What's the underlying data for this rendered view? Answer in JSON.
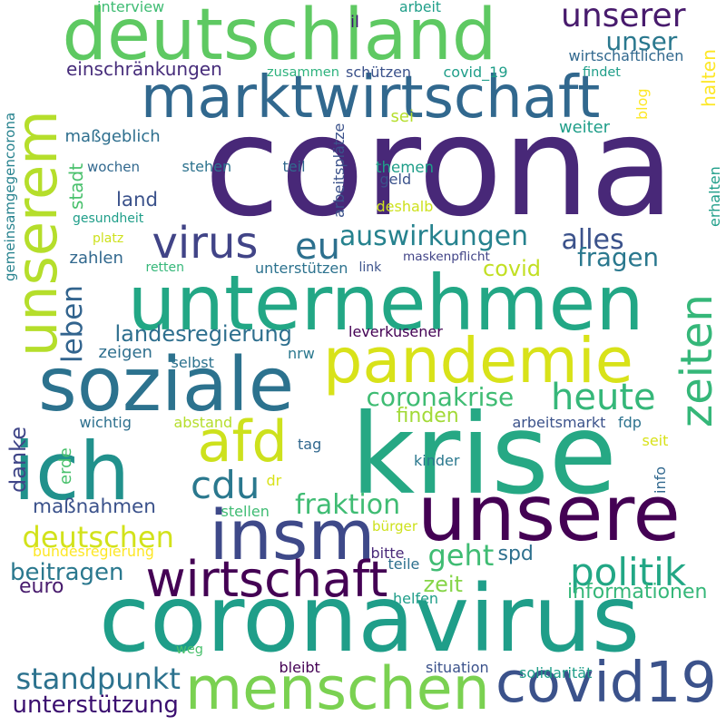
{
  "words": [
    {
      "text": "corona",
      "color": "#482878",
      "rotated": false
    },
    {
      "text": "coronavirus",
      "color": "#1f9e89",
      "rotated": false
    },
    {
      "text": "krise",
      "color": "#26a884",
      "rotated": false
    },
    {
      "text": "unternehmen",
      "color": "#22a785",
      "rotated": false
    },
    {
      "text": "deutschland",
      "color": "#5ec962",
      "rotated": false
    },
    {
      "text": "marktwirtschaft",
      "color": "#31688e",
      "rotated": false
    },
    {
      "text": "soziale",
      "color": "#2c728e",
      "rotated": false
    },
    {
      "text": "ich",
      "color": "#21918c",
      "rotated": false
    },
    {
      "text": "unsere",
      "color": "#440154",
      "rotated": false
    },
    {
      "text": "unserem",
      "color": "#b5de2b",
      "rotated": true
    },
    {
      "text": "zeiten",
      "color": "#35b779",
      "rotated": true
    },
    {
      "text": "pandemie",
      "color": "#d8e219",
      "rotated": false
    },
    {
      "text": "menschen",
      "color": "#7ad151",
      "rotated": false
    },
    {
      "text": "covid19",
      "color": "#3b528b",
      "rotated": false
    },
    {
      "text": "insm",
      "color": "#3e4989",
      "rotated": false
    },
    {
      "text": "afd",
      "color": "#cde11d",
      "rotated": false
    },
    {
      "text": "wirtschaft",
      "color": "#440154",
      "rotated": false
    },
    {
      "text": "virus",
      "color": "#414487",
      "rotated": false
    },
    {
      "text": "eu",
      "color": "#2d708e",
      "rotated": false
    },
    {
      "text": "politik",
      "color": "#22a785",
      "rotated": false
    },
    {
      "text": "unserer",
      "color": "#481b6d",
      "rotated": false
    },
    {
      "text": "cdu",
      "color": "#2a788e",
      "rotated": false
    },
    {
      "text": "heute",
      "color": "#35b779",
      "rotated": false
    },
    {
      "text": "land",
      "color": "#3b528b",
      "rotated": false
    },
    {
      "text": "unser",
      "color": "#2a788e",
      "rotated": false
    },
    {
      "text": "standpunkt",
      "color": "#2c728e",
      "rotated": false
    },
    {
      "text": "auswirkungen",
      "color": "#26828e",
      "rotated": false
    },
    {
      "text": "alles",
      "color": "#3b528b",
      "rotated": false
    },
    {
      "text": "fraktion",
      "color": "#3fbc73",
      "rotated": false
    },
    {
      "text": "deutschen",
      "color": "#d2e21b",
      "rotated": false
    },
    {
      "text": "coronakrise",
      "color": "#3fbc73",
      "rotated": false
    },
    {
      "text": "geht",
      "color": "#3fbc73",
      "rotated": false
    },
    {
      "text": "fragen",
      "color": "#2a788e",
      "rotated": false
    },
    {
      "text": "leben",
      "color": "#32648e",
      "rotated": true
    },
    {
      "text": "covid",
      "color": "#c2df23",
      "rotated": false
    },
    {
      "text": "landesregierung",
      "color": "#2e6f8e",
      "rotated": false
    },
    {
      "text": "unterstützung",
      "color": "#3b0f70",
      "rotated": false
    },
    {
      "text": "beitragen",
      "color": "#2a788e",
      "rotated": false
    },
    {
      "text": "danke",
      "color": "#404688",
      "rotated": true
    },
    {
      "text": "maßnahmen",
      "color": "#3b528b",
      "rotated": false
    },
    {
      "text": "finden",
      "color": "#a2da37",
      "rotated": false
    },
    {
      "text": "informationen",
      "color": "#35b779",
      "rotated": false
    },
    {
      "text": "zeit",
      "color": "#86d549",
      "rotated": false
    },
    {
      "text": "spd",
      "color": "#2d708e",
      "rotated": false
    },
    {
      "text": "euro",
      "color": "#481b6d",
      "rotated": false
    },
    {
      "text": "halten",
      "color": "#fde725",
      "rotated": true
    },
    {
      "text": "stadt",
      "color": "#4ac16d",
      "rotated": true
    },
    {
      "text": "einschränkungen",
      "color": "#472d7b",
      "rotated": false
    },
    {
      "text": "interview",
      "color": "#3fbc73",
      "rotated": false
    },
    {
      "text": "arbeit",
      "color": "#1f9e89",
      "rotated": false
    },
    {
      "text": "il",
      "color": "#3b0f70",
      "rotated": false
    },
    {
      "text": "wirtschaftlichen",
      "color": "#31688e",
      "rotated": false
    },
    {
      "text": "zusammen",
      "color": "#2db27d",
      "rotated": false
    },
    {
      "text": "schützen",
      "color": "#3b528b",
      "rotated": false
    },
    {
      "text": "covid_19",
      "color": "#1f9e89",
      "rotated": false
    },
    {
      "text": "findet",
      "color": "#1f9e89",
      "rotated": false
    },
    {
      "text": "blog",
      "color": "#fde725",
      "rotated": true
    },
    {
      "text": "sei",
      "color": "#b5de2b",
      "rotated": false
    },
    {
      "text": "weiter",
      "color": "#1f9e89",
      "rotated": false
    },
    {
      "text": "maßgeblich",
      "color": "#2e6f8e",
      "rotated": false
    },
    {
      "text": "arbeitsplätze",
      "color": "#3b528b",
      "rotated": true
    },
    {
      "text": "gemeinsamgegencorona",
      "color": "#26828e",
      "rotated": true
    },
    {
      "text": "wochen",
      "color": "#31688e",
      "rotated": false
    },
    {
      "text": "stehen",
      "color": "#2c728e",
      "rotated": false
    },
    {
      "text": "teil",
      "color": "#31688e",
      "rotated": false
    },
    {
      "text": "themen",
      "color": "#1f9e89",
      "rotated": false
    },
    {
      "text": "geld",
      "color": "#3b528b",
      "rotated": false
    },
    {
      "text": "erhalten",
      "color": "#1f9e89",
      "rotated": true
    },
    {
      "text": "gesundheit",
      "color": "#1f9e89",
      "rotated": false
    },
    {
      "text": "deshalb",
      "color": "#cde11d",
      "rotated": false
    },
    {
      "text": "platz",
      "color": "#cde11d",
      "rotated": false
    },
    {
      "text": "zahlen",
      "color": "#31688e",
      "rotated": false
    },
    {
      "text": "maskenpflicht",
      "color": "#414487",
      "rotated": false
    },
    {
      "text": "link",
      "color": "#3b528b",
      "rotated": false
    },
    {
      "text": "retten",
      "color": "#35b779",
      "rotated": false
    },
    {
      "text": "unterstützen",
      "color": "#2c728e",
      "rotated": false
    },
    {
      "text": "leverkusener",
      "color": "#440154",
      "rotated": false
    },
    {
      "text": "zeigen",
      "color": "#2e6f8e",
      "rotated": false
    },
    {
      "text": "selbst",
      "color": "#2c728e",
      "rotated": false
    },
    {
      "text": "nrw",
      "color": "#2a788e",
      "rotated": false
    },
    {
      "text": "wichtig",
      "color": "#2d708e",
      "rotated": false
    },
    {
      "text": "abstand",
      "color": "#b5de2b",
      "rotated": false
    },
    {
      "text": "arbeitsmarkt",
      "color": "#3b528b",
      "rotated": false
    },
    {
      "text": "fdp",
      "color": "#2c728e",
      "rotated": false
    },
    {
      "text": "seit",
      "color": "#d8e219",
      "rotated": false
    },
    {
      "text": "tag",
      "color": "#31688e",
      "rotated": false
    },
    {
      "text": "kinder",
      "color": "#2a788e",
      "rotated": false
    },
    {
      "text": "erde",
      "color": "#4ac16d",
      "rotated": true
    },
    {
      "text": "dr",
      "color": "#d8e219",
      "rotated": false
    },
    {
      "text": "info",
      "color": "#31688e",
      "rotated": true
    },
    {
      "text": "stellen",
      "color": "#3fbc73",
      "rotated": false
    },
    {
      "text": "bürger",
      "color": "#cde11d",
      "rotated": false
    },
    {
      "text": "bundesregierung",
      "color": "#fde725",
      "rotated": false
    },
    {
      "text": "bitte",
      "color": "#482878",
      "rotated": false
    },
    {
      "text": "teile",
      "color": "#2d708e",
      "rotated": false
    },
    {
      "text": "helfen",
      "color": "#1f9e89",
      "rotated": false
    },
    {
      "text": "weg",
      "color": "#4ac16d",
      "rotated": false
    },
    {
      "text": "bleibt",
      "color": "#440154",
      "rotated": false
    },
    {
      "text": "situation",
      "color": "#3b528b",
      "rotated": false
    },
    {
      "text": "solidarität",
      "color": "#1f9e89",
      "rotated": false
    }
  ]
}
